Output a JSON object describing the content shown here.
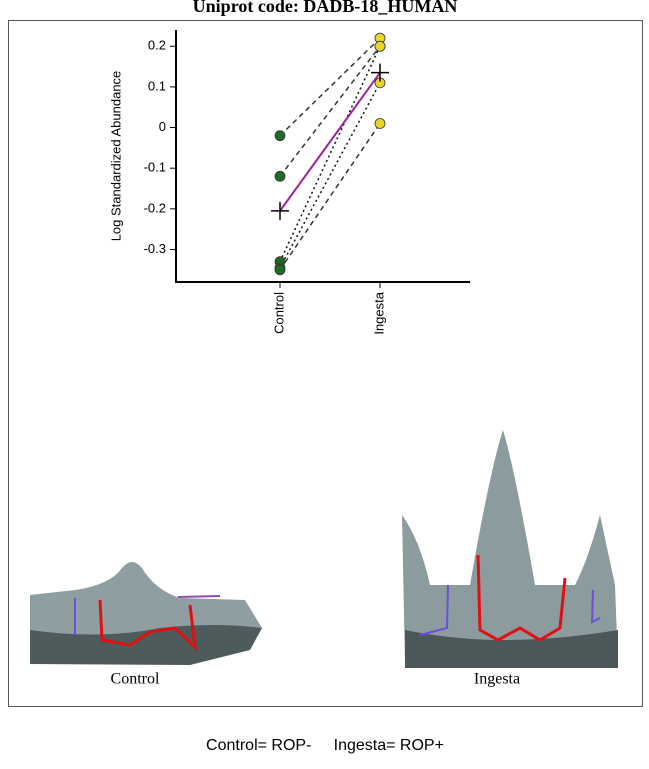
{
  "title": "Uniprot code: DADB-18_HUMAN",
  "chart_data": {
    "type": "paired-dot",
    "y_label": "Log Standardized Abundance",
    "categories": [
      "Control",
      "Ingesta"
    ],
    "ylim": [
      -0.38,
      0.24
    ],
    "yticks": [
      -0.3,
      -0.2,
      -0.1,
      0,
      0.1,
      0.2
    ],
    "marker_colors": [
      "#1f6b25",
      "#e8d52a"
    ],
    "series": [
      {
        "values": [
          -0.02,
          0.22
        ],
        "color": "#333333",
        "style": "dashed"
      },
      {
        "values": [
          -0.12,
          0.2
        ],
        "color": "#333333",
        "style": "dashed"
      },
      {
        "values": [
          -0.33,
          0.2
        ],
        "color": "#111111",
        "style": "dotted"
      },
      {
        "values": [
          -0.345,
          0.11
        ],
        "color": "#111111",
        "style": "dotted"
      },
      {
        "values": [
          -0.35,
          0.01
        ],
        "color": "#333333",
        "style": "dashed"
      },
      {
        "values": [
          -0.205,
          0.135
        ],
        "color": "#a020a0",
        "style": "solid",
        "marker": "cross"
      }
    ]
  },
  "panels": [
    {
      "label": "Control"
    },
    {
      "label": "Ingesta"
    }
  ],
  "caption": "Control= ROP-     Ingesta= ROP+"
}
